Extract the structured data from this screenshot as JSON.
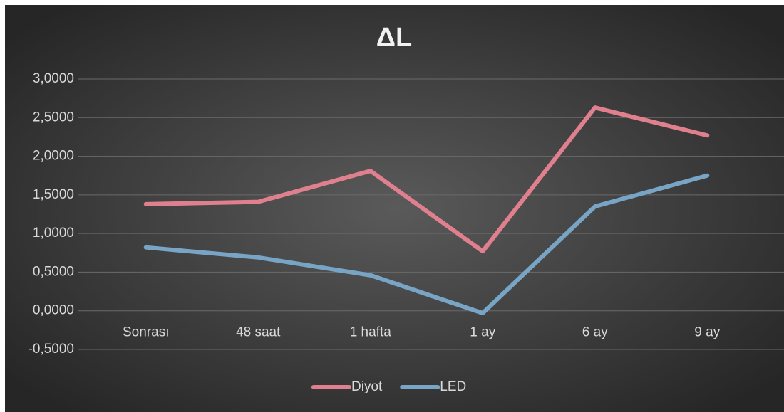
{
  "chart_data": {
    "type": "line",
    "title": "ΔL",
    "categories": [
      "Sonrası",
      "48 saat",
      "1 hafta",
      "1 ay",
      "6 ay",
      "9 ay"
    ],
    "series": [
      {
        "name": "Diyot",
        "color": "#e0808f",
        "values": [
          1.38,
          1.41,
          1.81,
          0.77,
          2.63,
          2.27
        ]
      },
      {
        "name": "LED",
        "color": "#78a5c5",
        "values": [
          0.82,
          0.69,
          0.46,
          -0.03,
          1.35,
          1.75
        ]
      }
    ],
    "ylim": [
      -0.5,
      3.0
    ],
    "yticks": [
      {
        "value": -0.5,
        "label": "-0,5000"
      },
      {
        "value": 0,
        "label": "0,0000"
      },
      {
        "value": 0.5,
        "label": "0,5000"
      },
      {
        "value": 1.0,
        "label": "1,0000"
      },
      {
        "value": 1.5,
        "label": "1,5000"
      },
      {
        "value": 2.0,
        "label": "2,0000"
      },
      {
        "value": 2.5,
        "label": "2,5000"
      },
      {
        "value": 3.0,
        "label": "3,0000"
      }
    ],
    "grid": true,
    "legend": "bottom"
  }
}
